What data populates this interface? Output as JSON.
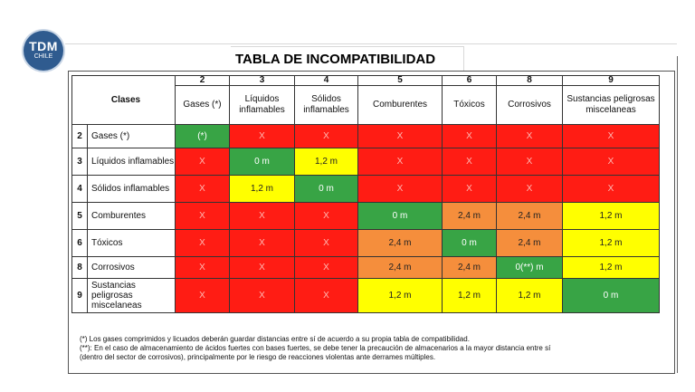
{
  "logo": {
    "line1": "TDM",
    "line2": "CHILE"
  },
  "title": "TABLA DE INCOMPATIBILIDAD",
  "table": {
    "corner_label": "Clases",
    "columns": [
      {
        "num": "2",
        "name": "Gases (*)"
      },
      {
        "num": "3",
        "name": "Líquidos inflamables"
      },
      {
        "num": "4",
        "name": "Sólidos inflamables"
      },
      {
        "num": "5",
        "name": "Comburentes"
      },
      {
        "num": "6",
        "name": "Tóxicos"
      },
      {
        "num": "8",
        "name": "Corrosivos"
      },
      {
        "num": "9",
        "name": "Sustancias peligrosas miscelaneas"
      }
    ],
    "rows": [
      {
        "num": "2",
        "name": "Gases (*)",
        "cells": [
          {
            "v": "(*)",
            "c": "green"
          },
          {
            "v": "X",
            "c": "red"
          },
          {
            "v": "X",
            "c": "red"
          },
          {
            "v": "X",
            "c": "red"
          },
          {
            "v": "X",
            "c": "red"
          },
          {
            "v": "X",
            "c": "red"
          },
          {
            "v": "X",
            "c": "red"
          }
        ]
      },
      {
        "num": "3",
        "name": "Líquidos inflamables",
        "cells": [
          {
            "v": "X",
            "c": "red"
          },
          {
            "v": "0 m",
            "c": "green"
          },
          {
            "v": "1,2 m",
            "c": "yellow"
          },
          {
            "v": "X",
            "c": "red"
          },
          {
            "v": "X",
            "c": "red"
          },
          {
            "v": "X",
            "c": "red"
          },
          {
            "v": "X",
            "c": "red"
          }
        ]
      },
      {
        "num": "4",
        "name": "Sólidos inflamables",
        "cells": [
          {
            "v": "X",
            "c": "red"
          },
          {
            "v": "1,2 m",
            "c": "yellow"
          },
          {
            "v": "0 m",
            "c": "green"
          },
          {
            "v": "X",
            "c": "red"
          },
          {
            "v": "X",
            "c": "red"
          },
          {
            "v": "X",
            "c": "red"
          },
          {
            "v": "X",
            "c": "red"
          }
        ]
      },
      {
        "num": "5",
        "name": "Comburentes",
        "cells": [
          {
            "v": "X",
            "c": "red"
          },
          {
            "v": "X",
            "c": "red"
          },
          {
            "v": "X",
            "c": "red"
          },
          {
            "v": "0 m",
            "c": "green"
          },
          {
            "v": "2,4 m",
            "c": "orange"
          },
          {
            "v": "2,4 m",
            "c": "orange"
          },
          {
            "v": "1,2 m",
            "c": "yellow"
          }
        ]
      },
      {
        "num": "6",
        "name": "Tóxicos",
        "cells": [
          {
            "v": "X",
            "c": "red"
          },
          {
            "v": "X",
            "c": "red"
          },
          {
            "v": "X",
            "c": "red"
          },
          {
            "v": "2,4 m",
            "c": "orange"
          },
          {
            "v": "0 m",
            "c": "green"
          },
          {
            "v": "2,4 m",
            "c": "orange"
          },
          {
            "v": "1,2 m",
            "c": "yellow"
          }
        ]
      },
      {
        "num": "8",
        "name": "Corrosivos",
        "cells": [
          {
            "v": "X",
            "c": "red"
          },
          {
            "v": "X",
            "c": "red"
          },
          {
            "v": "X",
            "c": "red"
          },
          {
            "v": "2,4 m",
            "c": "orange"
          },
          {
            "v": "2,4 m",
            "c": "orange"
          },
          {
            "v": "0(**) m",
            "c": "green"
          },
          {
            "v": "1,2 m",
            "c": "yellow"
          }
        ]
      },
      {
        "num": "9",
        "name": "Sustancias peligrosas miscelaneas",
        "cells": [
          {
            "v": "X",
            "c": "red"
          },
          {
            "v": "X",
            "c": "red"
          },
          {
            "v": "X",
            "c": "red"
          },
          {
            "v": "1,2 m",
            "c": "yellow"
          },
          {
            "v": "1,2 m",
            "c": "yellow"
          },
          {
            "v": "1,2 m",
            "c": "yellow"
          },
          {
            "v": "0 m",
            "c": "green"
          }
        ]
      }
    ]
  },
  "notes": {
    "note1": "(*) Los gases comprimidos y licuados deberán guardar distancias entre sí de acuerdo a su propia tabla de compatibilidad.",
    "note2": "(**): En el caso de almacenamiento de ácidos fuertes con bases fuertes, se debe tener la precaución de almacenarios a la mayor distancia entre sí",
    "note3": "(dentro del sector de corrosivos), principalmente por le riesgo de reacciones violentas ante derrames múltiples."
  },
  "colors": {
    "red": "#ff1c14",
    "green": "#38a445",
    "yellow": "#ffff00",
    "orange": "#f58e3c",
    "logo": "#2f5b8f"
  }
}
